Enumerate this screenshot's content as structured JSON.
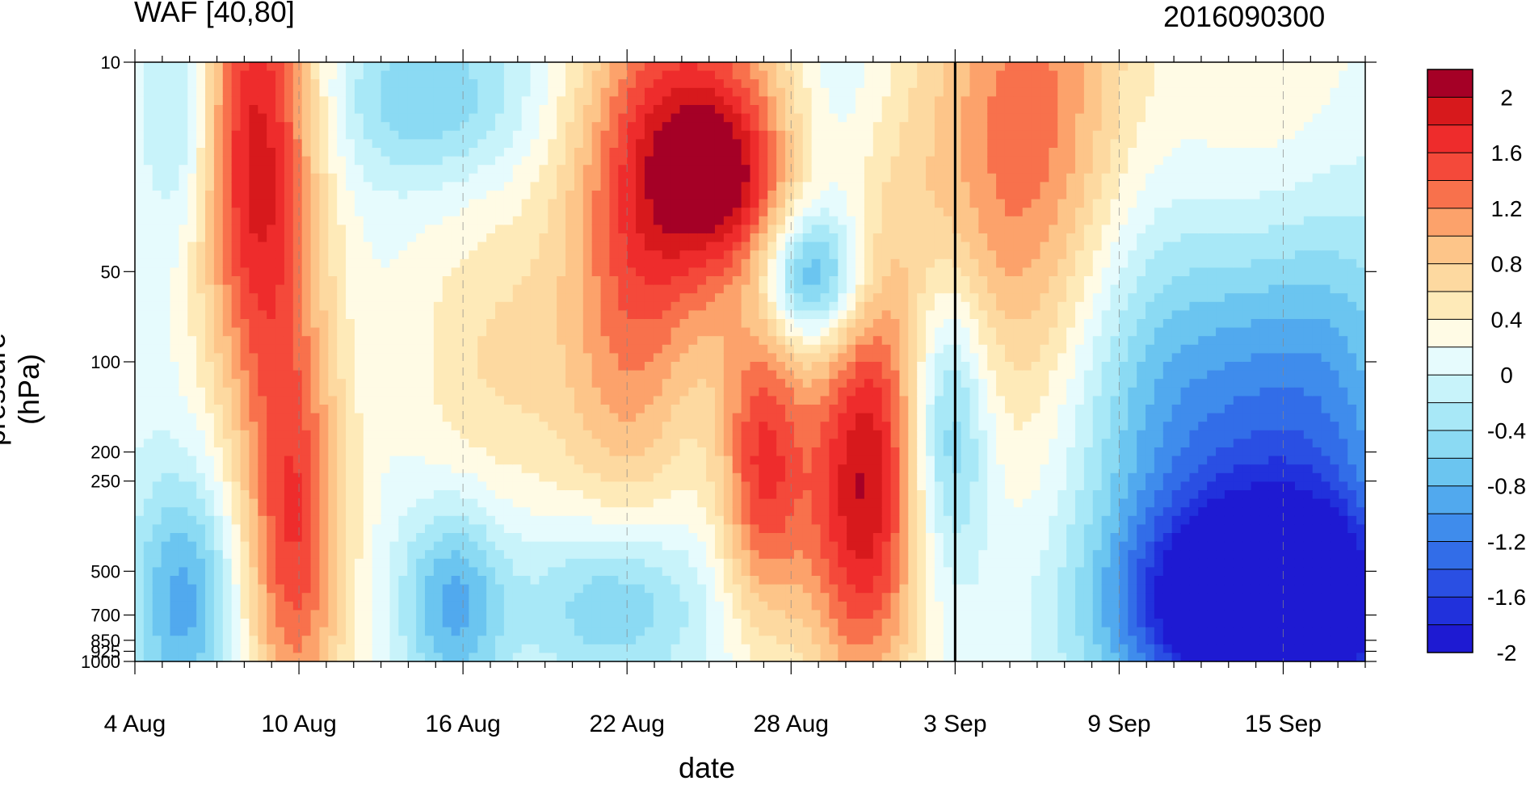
{
  "chart_data": {
    "type": "heatmap",
    "title_left": "WAF [40,80]",
    "title_right": "2016090300",
    "xlabel": "date",
    "ylabel": "pressure (hPa)",
    "x_ticks": [
      "4 Aug",
      "10 Aug",
      "16 Aug",
      "22 Aug",
      "28 Aug",
      "3 Sep",
      "9 Sep",
      "15 Sep"
    ],
    "y_ticks": [
      "10",
      "50",
      "100",
      "200",
      "250",
      "500",
      "700",
      "850",
      "925",
      "1000"
    ],
    "y_scale": "log",
    "ylim": [
      1000,
      10
    ],
    "colorbar_labels": [
      "2",
      "1.6",
      "1.2",
      "0.8",
      "0.4",
      "0",
      "-0.4",
      "-0.8",
      "-1.2",
      "-1.6",
      "-2"
    ],
    "colorbar_colors": [
      "#a50026",
      "#d7191c",
      "#ee2c2c",
      "#f4493a",
      "#f8714c",
      "#fca26b",
      "#fdc589",
      "#fdd9a0",
      "#feeab8",
      "#fffbe5",
      "#e6fbfd",
      "#c8f3fa",
      "#a8e8f7",
      "#8bdaf3",
      "#6bc5f0",
      "#51a9ee",
      "#3f8cec",
      "#326de8",
      "#2a4fe3",
      "#2131dc",
      "#1e1ad2"
    ],
    "highlight": {
      "x": "3 Sep",
      "note": "vertical line at forecast start"
    }
  }
}
